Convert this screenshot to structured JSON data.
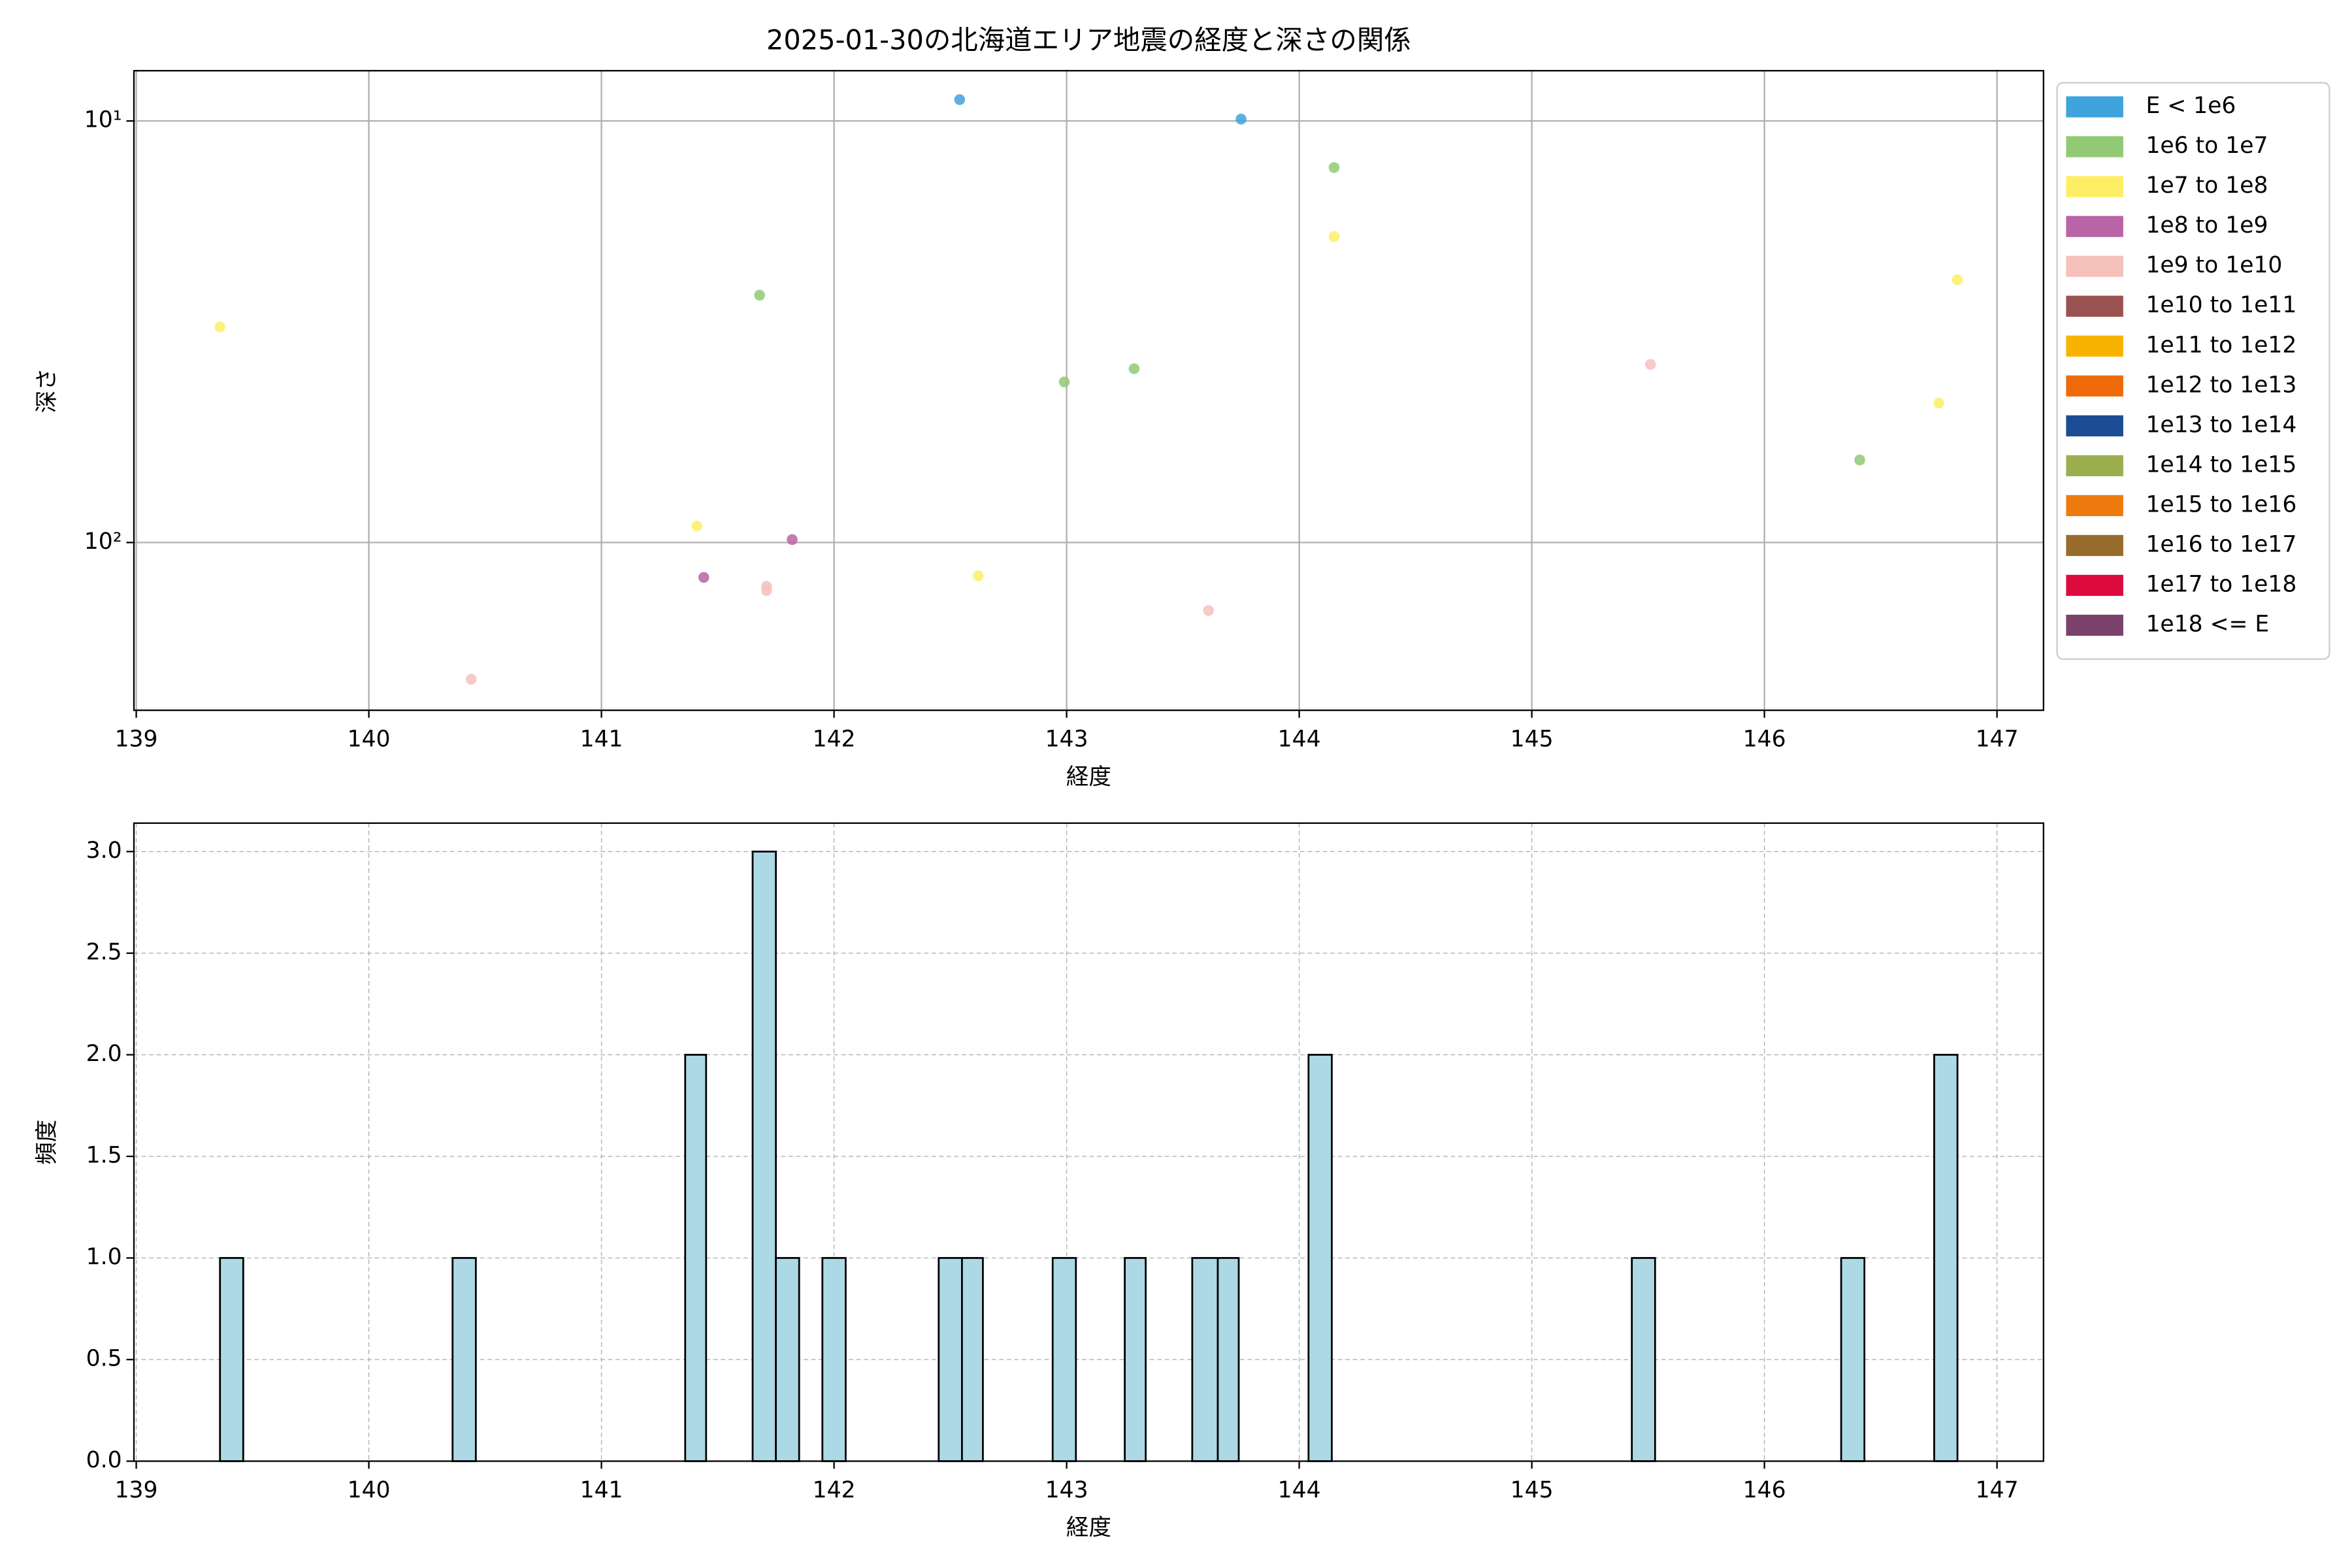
{
  "chart_data": [
    {
      "type": "scatter",
      "title": "2025-01-30の北海道エリア地震の経度と深さの関係",
      "xlabel": "経度",
      "ylabel": "深さ",
      "xlim": [
        138.99,
        147.2
      ],
      "xticks": [
        139,
        140,
        141,
        142,
        143,
        144,
        145,
        146,
        147
      ],
      "ylim": [
        7.6,
        250
      ],
      "yticks": [
        {
          "value": 10,
          "label": "10¹"
        },
        {
          "value": 100,
          "label": "10²"
        }
      ],
      "log_y": true,
      "y_inverted": true,
      "grid": true,
      "legend": "outside upper right",
      "series": [
        {
          "name": "E < 1e6",
          "color": "#3fa3dc",
          "x": [
            142.54,
            143.75
          ],
          "values": [
            8.9,
            9.9
          ]
        },
        {
          "name": "1e6 to 1e7",
          "color": "#92c975",
          "x": [
            144.15,
            141.68,
            143.29,
            142.99,
            146.41
          ],
          "values": [
            12.9,
            25.9,
            38.7,
            41.6,
            63.7
          ]
        },
        {
          "name": "1e7 to 1e8",
          "color": "#fdee65",
          "x": [
            144.15,
            139.36,
            146.83,
            146.75,
            141.41,
            142.62
          ],
          "values": [
            18.8,
            30.8,
            23.8,
            46.7,
            91.4,
            120
          ]
        },
        {
          "name": "1e8 to 1e9",
          "color": "#b964a6",
          "x": [
            141.82,
            141.44
          ],
          "values": [
            98.4,
            121
          ]
        },
        {
          "name": "1e9 to 1e10",
          "color": "#f6c1bb",
          "x": [
            145.51,
            141.71,
            141.71,
            143.61,
            140.44
          ],
          "values": [
            37.8,
            127,
            130,
            145,
            211
          ]
        },
        {
          "name": "1e10 to 1e11",
          "color": "#9a5250",
          "x": [],
          "values": []
        },
        {
          "name": "1e11 to 1e12",
          "color": "#f8b301",
          "x": [],
          "values": []
        },
        {
          "name": "1e12 to 1e13",
          "color": "#ef6a0a",
          "x": [],
          "values": []
        },
        {
          "name": "1e13 to 1e14",
          "color": "#1c4d94",
          "x": [],
          "values": []
        },
        {
          "name": "1e14 to 1e15",
          "color": "#9caf4f",
          "x": [],
          "values": []
        },
        {
          "name": "1e15 to 1e16",
          "color": "#ee7b0e",
          "x": [],
          "values": []
        },
        {
          "name": "1e16 to 1e17",
          "color": "#986c2c",
          "x": [],
          "values": []
        },
        {
          "name": "1e17 to 1e18",
          "color": "#dc0a3d",
          "x": [],
          "values": []
        },
        {
          "name": "1e18 <= E",
          "color": "#7a416b",
          "x": [],
          "values": []
        }
      ]
    },
    {
      "type": "histogram",
      "xlabel": "経度",
      "ylabel": "頻度",
      "color": "#add8e6",
      "edgecolor": "#000000",
      "bins": [
        139.36,
        139.46,
        140.36,
        140.46,
        141.36,
        141.45,
        141.65,
        141.75,
        141.85,
        141.95,
        142.05,
        142.45,
        142.55,
        142.64,
        142.94,
        143.04,
        143.25,
        143.34,
        143.54,
        143.65,
        143.74,
        144.04,
        144.14,
        145.43,
        145.53,
        146.33,
        146.43,
        146.73,
        146.83
      ],
      "counts": [
        1,
        0,
        1,
        0,
        2,
        0,
        3,
        1,
        0,
        1,
        0,
        1,
        1,
        0,
        1,
        0,
        1,
        0,
        1,
        1,
        0,
        2,
        0,
        1,
        0,
        1,
        0,
        2
      ],
      "xlim": [
        138.99,
        147.2
      ],
      "xticks": [
        139,
        140,
        141,
        142,
        143,
        144,
        145,
        146,
        147
      ],
      "ylim": [
        0,
        3.14
      ],
      "yticks": [
        {
          "value": 0,
          "label": "0.0"
        },
        {
          "value": 0.5,
          "label": "0.5"
        },
        {
          "value": 1,
          "label": "1.0"
        },
        {
          "value": 1.5,
          "label": "1.5"
        },
        {
          "value": 2,
          "label": "2.0"
        },
        {
          "value": 2.5,
          "label": "2.5"
        },
        {
          "value": 3,
          "label": "3.0"
        }
      ],
      "grid": true,
      "grid_style": "dashed"
    }
  ]
}
